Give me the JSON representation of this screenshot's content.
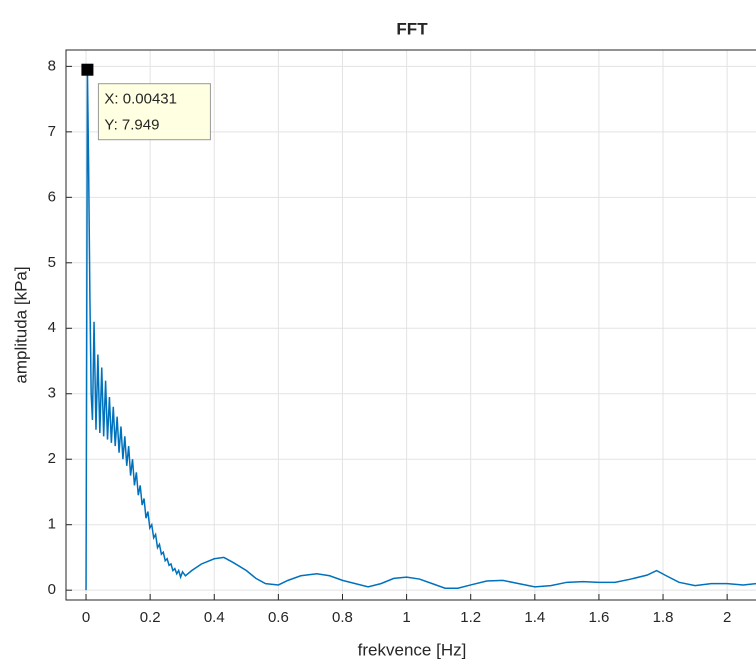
{
  "chart_data": {
    "type": "line",
    "title": "FFT",
    "x_label": "frekvence [Hz]",
    "y_label": "amplituda [kPa]",
    "xlim": [
      -0.0625,
      2.09
    ],
    "ylim": [
      -0.15,
      8.25
    ],
    "xticks": [
      0,
      0.2,
      0.4,
      0.6,
      0.8,
      1,
      1.2,
      1.4,
      1.6,
      1.8,
      2
    ],
    "yticks": [
      0,
      1,
      2,
      3,
      4,
      5,
      6,
      7,
      8
    ],
    "grid": true,
    "series": [
      {
        "color": "#0072BD",
        "x": [
          0,
          0.00431,
          0.008,
          0.012,
          0.016,
          0.02,
          0.025,
          0.031,
          0.037,
          0.043,
          0.049,
          0.055,
          0.061,
          0.067,
          0.073,
          0.079,
          0.085,
          0.091,
          0.097,
          0.103,
          0.109,
          0.115,
          0.121,
          0.127,
          0.133,
          0.139,
          0.145,
          0.151,
          0.157,
          0.163,
          0.169,
          0.175,
          0.181,
          0.187,
          0.193,
          0.199,
          0.205,
          0.211,
          0.217,
          0.223,
          0.229,
          0.235,
          0.241,
          0.247,
          0.253,
          0.259,
          0.265,
          0.271,
          0.277,
          0.283,
          0.289,
          0.295,
          0.301,
          0.31,
          0.33,
          0.36,
          0.4,
          0.43,
          0.46,
          0.5,
          0.53,
          0.56,
          0.6,
          0.63,
          0.67,
          0.72,
          0.76,
          0.8,
          0.84,
          0.88,
          0.92,
          0.96,
          1.0,
          1.04,
          1.08,
          1.12,
          1.16,
          1.2,
          1.25,
          1.3,
          1.35,
          1.4,
          1.45,
          1.5,
          1.55,
          1.6,
          1.65,
          1.7,
          1.75,
          1.78,
          1.81,
          1.85,
          1.9,
          1.95,
          2.0,
          2.05,
          2.09
        ],
        "values": [
          0,
          7.949,
          6.5,
          4.5,
          3.0,
          2.6,
          4.1,
          2.45,
          3.6,
          2.4,
          3.4,
          2.35,
          3.2,
          2.3,
          2.95,
          2.25,
          2.8,
          2.2,
          2.65,
          2.1,
          2.5,
          2.0,
          2.35,
          1.9,
          2.2,
          1.75,
          2.0,
          1.6,
          1.8,
          1.45,
          1.6,
          1.3,
          1.4,
          1.1,
          1.2,
          0.95,
          1.0,
          0.8,
          0.85,
          0.65,
          0.7,
          0.55,
          0.58,
          0.45,
          0.48,
          0.38,
          0.4,
          0.3,
          0.33,
          0.25,
          0.3,
          0.2,
          0.28,
          0.22,
          0.3,
          0.4,
          0.48,
          0.5,
          0.42,
          0.3,
          0.18,
          0.1,
          0.08,
          0.15,
          0.22,
          0.25,
          0.22,
          0.15,
          0.1,
          0.05,
          0.1,
          0.18,
          0.2,
          0.17,
          0.1,
          0.03,
          0.03,
          0.08,
          0.14,
          0.15,
          0.1,
          0.05,
          0.07,
          0.12,
          0.13,
          0.12,
          0.12,
          0.17,
          0.23,
          0.3,
          0.22,
          0.12,
          0.07,
          0.1,
          0.1,
          0.08,
          0.1
        ]
      }
    ],
    "datatip": {
      "x": 0.00431,
      "y": 7.949,
      "x_label": "X: 0.00431",
      "y_label": "Y: 7.949"
    }
  }
}
